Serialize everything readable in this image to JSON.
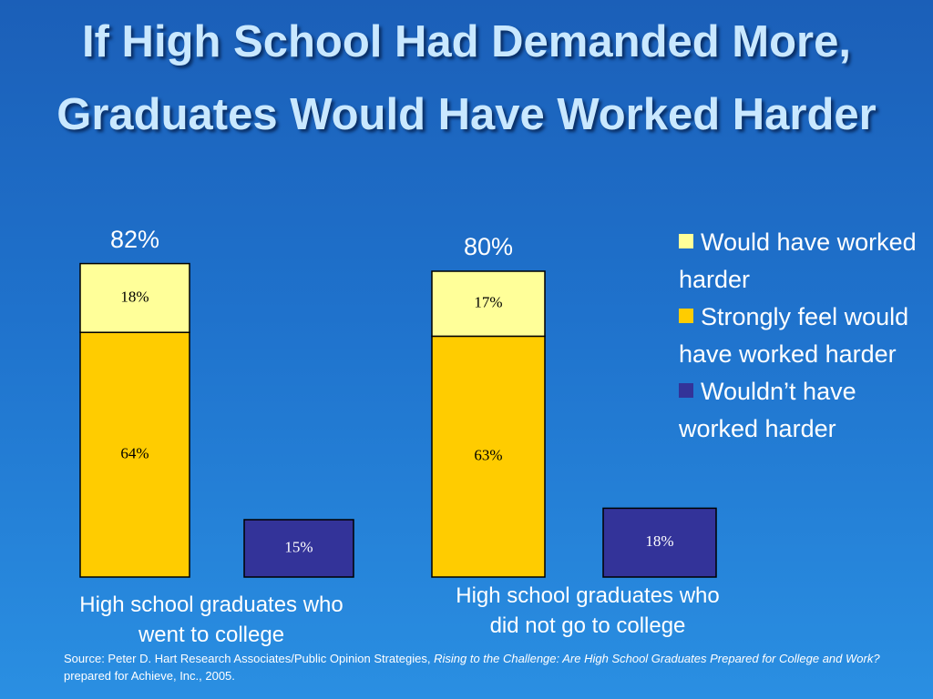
{
  "chart_data": {
    "type": "bar",
    "title": "If High School Had Demanded More, Graduates Would Have Worked Harder",
    "categories": [
      "High school graduates who went to college",
      "High school graduates who did not go to college"
    ],
    "series": [
      {
        "name": "Would have worked harder",
        "color": "#ffff99",
        "stacked": true,
        "values": [
          18,
          17
        ],
        "value_labels": [
          "18%",
          "17%"
        ]
      },
      {
        "name": "Strongly feel would have worked harder",
        "color": "#ffcc00",
        "stacked": true,
        "values": [
          64,
          63
        ],
        "value_labels": [
          "64%",
          "63%"
        ]
      },
      {
        "name": "Wouldn’t have worked harder",
        "color": "#333399",
        "stacked": false,
        "values": [
          15,
          18
        ],
        "value_labels": [
          "15%",
          "18%"
        ]
      }
    ],
    "totals": [
      82,
      80
    ],
    "total_labels": [
      "82%",
      "80%"
    ],
    "ylim": [
      0,
      100
    ],
    "legend": "right",
    "source": [
      {
        "text": "Source: Peter D. Hart Research Associates/Public Opinion Strategies, ",
        "italic": false
      },
      {
        "text": "Rising to the Challenge: Are High School Graduates Prepared for College and Work?",
        "italic": true
      },
      {
        "text": " prepared for Achieve, Inc., 2005.",
        "italic": false
      }
    ]
  }
}
